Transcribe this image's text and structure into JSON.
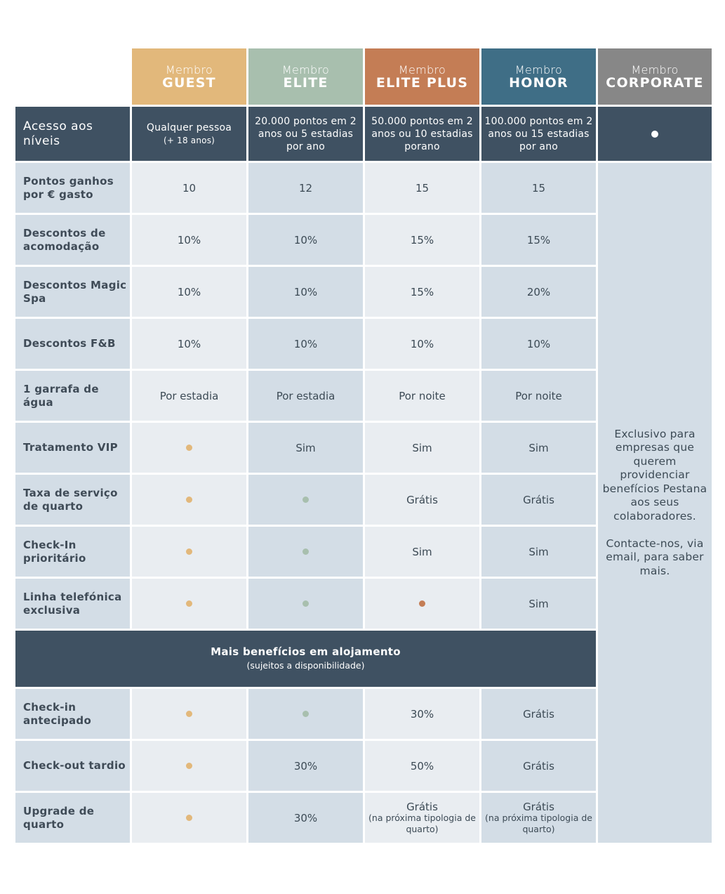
{
  "tiers": [
    {
      "prefix": "Membro",
      "name": "GUEST"
    },
    {
      "prefix": "Membro",
      "name": "ELITE"
    },
    {
      "prefix": "Membro",
      "name": "ELITE PLUS"
    },
    {
      "prefix": "Membro",
      "name": "HONOR"
    },
    {
      "prefix": "Membro",
      "name": "CORPORATE"
    }
  ],
  "access": {
    "label": "Acesso aos níveis",
    "guest": "Qualquer pessoa",
    "guest_note": "(+ 18 anos)",
    "elite": "20.000 pontos em 2 anos ou 5 estadias por ano",
    "elite_plus": "50.000 pontos em 2 anos ou 10 estadias porano",
    "honor": "100.000 pontos em 2 anos ou 15 estadias por ano"
  },
  "rows": [
    {
      "label": "Pontos ganhos por € gasto",
      "values": [
        "10",
        "12",
        "15",
        "15"
      ]
    },
    {
      "label": "Descontos de acomodação",
      "values": [
        "10%",
        "10%",
        "15%",
        "15%"
      ]
    },
    {
      "label": "Descontos Magic Spa",
      "values": [
        "10%",
        "10%",
        "15%",
        "20%"
      ]
    },
    {
      "label": "Descontos F&B",
      "values": [
        "10%",
        "10%",
        "10%",
        "10%"
      ]
    },
    {
      "label": "1 garrafa de água",
      "values": [
        "Por estadia",
        "Por estadia",
        "Por noite",
        "Por noite"
      ]
    },
    {
      "label": "Tratamento VIP",
      "values": [
        "",
        "Sim",
        "Sim",
        "Sim"
      ]
    },
    {
      "label": "Taxa de serviço de quarto",
      "values": [
        "",
        "",
        "Grátis",
        "Grátis"
      ]
    },
    {
      "label": "Check-In prioritário",
      "values": [
        "",
        "",
        "Sim",
        "Sim"
      ]
    },
    {
      "label": "Linha telefónica exclusiva",
      "values": [
        "",
        "",
        "",
        "Sim"
      ]
    }
  ],
  "corporate_text": "Exclusivo para empresas que querem providenciar benefícios Pestana aos seus colaboradores.\n\nContacte-nos, via email, para saber mais.",
  "section": {
    "title": "Mais benefícios em alojamento",
    "subtitle": "(sujeitos a disponibilidade)"
  },
  "rows2": [
    {
      "label": "Check-in antecipado",
      "values": [
        "",
        "",
        "30%",
        "Grátis"
      ]
    },
    {
      "label": "Check-out tardio",
      "values": [
        "",
        "30%",
        "50%",
        "Grátis"
      ]
    },
    {
      "label": "Upgrade de quarto",
      "values": [
        "",
        "30%",
        "Grátis",
        "Grátis"
      ],
      "notes": [
        "",
        "",
        "(na próxima tipologia de quarto)",
        "(na próxima tipologia de quarto)"
      ]
    }
  ],
  "colors": {
    "guest": "#e2b87b",
    "elite": "#a8bfae",
    "elite_plus": "#c47d55",
    "honor": "#3f6e86",
    "corporate": "#878787",
    "dark": "#3f5162"
  }
}
